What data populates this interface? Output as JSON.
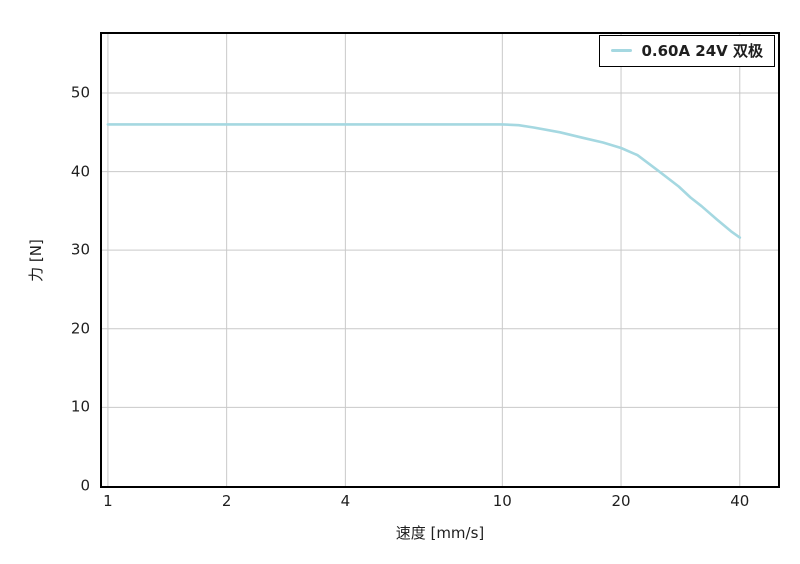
{
  "chart_data": {
    "type": "line",
    "title": "",
    "xlabel": "速度 [mm/s]",
    "ylabel": "力 [N]",
    "x_scale": "log",
    "y_scale": "linear",
    "xlim": [
      0.966,
      50
    ],
    "ylim": [
      0,
      57.5
    ],
    "x_ticks": [
      1,
      2,
      4,
      10,
      20,
      40
    ],
    "y_ticks": [
      0,
      10,
      20,
      30,
      40,
      50
    ],
    "grid": true,
    "legend_position": "upper right",
    "series": [
      {
        "name": "0.60A 24V 双极",
        "color": "#a5d8e1",
        "points": [
          [
            1,
            46
          ],
          [
            2,
            46
          ],
          [
            4,
            46
          ],
          [
            6,
            46
          ],
          [
            8,
            46
          ],
          [
            10,
            46
          ],
          [
            11,
            45.9
          ],
          [
            12,
            45.6
          ],
          [
            14,
            45.0
          ],
          [
            16,
            44.3
          ],
          [
            18,
            43.7
          ],
          [
            20,
            43.0
          ],
          [
            22,
            42.1
          ],
          [
            25,
            40.0
          ],
          [
            28,
            38.1
          ],
          [
            30,
            36.7
          ],
          [
            32,
            35.6
          ],
          [
            35,
            33.9
          ],
          [
            38,
            32.4
          ],
          [
            40,
            31.6
          ]
        ]
      }
    ]
  },
  "colors": {
    "grid": "#c9c9c9",
    "spine": "#000000",
    "text": "#1f1f1f",
    "background": "#ffffff"
  }
}
